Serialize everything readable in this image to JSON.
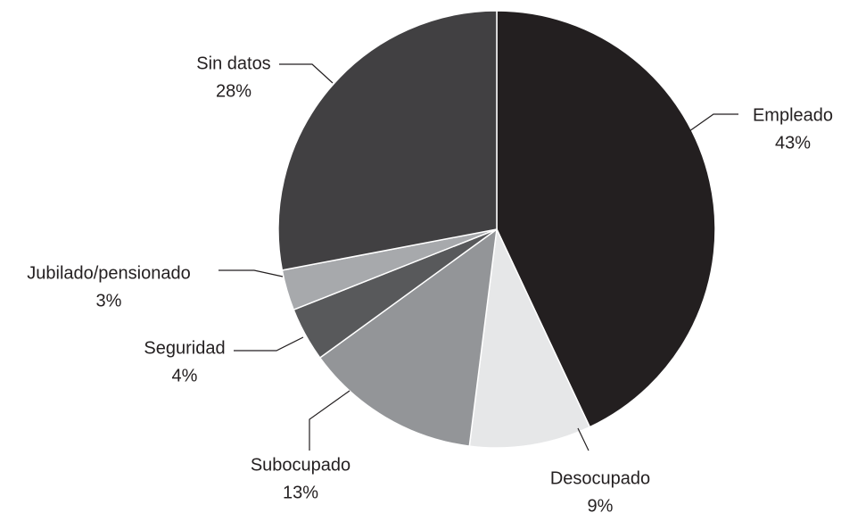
{
  "chart_data": {
    "type": "pie",
    "categories": [
      "Empleado",
      "Desocupado",
      "Subocupado",
      "Seguridad",
      "Jubilado/pensionado",
      "Sin datos"
    ],
    "values": [
      43,
      9,
      13,
      4,
      3,
      28
    ],
    "value_labels": [
      "43%",
      "9%",
      "13%",
      "4%",
      "3%",
      "28%"
    ],
    "colors": [
      "#231f20",
      "#e6e7e8",
      "#939598",
      "#58595b",
      "#a7a9ac",
      "#414042"
    ]
  }
}
